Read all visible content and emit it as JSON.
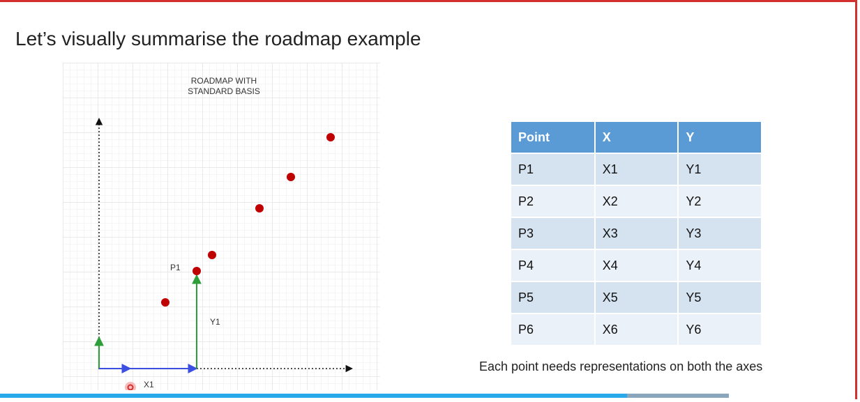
{
  "slide": {
    "title": "Let’s visually summarise the roadmap example",
    "caption": "Each point needs representations on both the axes"
  },
  "diagram": {
    "title_line1": "ROADMAP WITH",
    "title_line2": "STANDARD BASIS",
    "labels": {
      "p1": "P1",
      "y1": "Y1",
      "x1": "X1"
    }
  },
  "table": {
    "headers": [
      "Point",
      "X",
      "Y"
    ],
    "rows": [
      [
        "P1",
        "X1",
        "Y1"
      ],
      [
        "P2",
        "X2",
        "Y2"
      ],
      [
        "P3",
        "X3",
        "Y3"
      ],
      [
        "P4",
        "X4",
        "Y4"
      ],
      [
        "P5",
        "X5",
        "Y5"
      ],
      [
        "P6",
        "X6",
        "Y6"
      ]
    ]
  },
  "colors": {
    "accent_red": "#d32f2f",
    "point_red": "#c00000",
    "axis_blue": "#3b4fe0",
    "axis_green": "#2e9e3a",
    "header_blue": "#5b9bd5",
    "progress_blue": "#29a8ea"
  },
  "video": {
    "progress": 0.86
  }
}
